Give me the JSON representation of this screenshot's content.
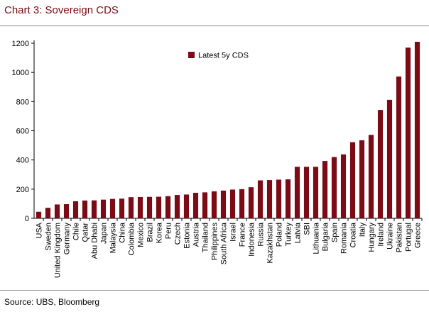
{
  "page": {
    "title": "Chart 3: Sovereign CDS",
    "source": "Source: UBS, Bloomberg"
  },
  "colors": {
    "bar": "#7b0c16",
    "title": "#7a0a14"
  },
  "chart_data": {
    "type": "bar",
    "title": "",
    "xlabel": "",
    "ylabel": "",
    "ylim": [
      0,
      1200
    ],
    "yticks": [
      "0",
      "200",
      "400",
      "600",
      "800",
      "1000",
      "1200"
    ],
    "legend_position": "top-left",
    "grid": false,
    "categories": [
      "USA",
      "Sweden",
      "United Kingdom",
      "Germany",
      "Chile",
      "Qatar",
      "Abu Dhabi",
      "Japan",
      "Malaysia",
      "China",
      "Colombia",
      "Mexico",
      "Brazil",
      "Korea",
      "Peru",
      "Czech",
      "Estonia",
      "Austria",
      "Thailand",
      "Philippines",
      "South Africa",
      "Israel",
      "France",
      "Indonesia",
      "Russia",
      "Kazakhstan",
      "Poland",
      "Turkey",
      "Latvia",
      "SBI",
      "Lithuania",
      "Bulgaria",
      "Spain",
      "Romania",
      "Croatia",
      "Italy",
      "Hungary",
      "Ireland",
      "Ukraine",
      "Pakistan",
      "Portugal",
      "Greece"
    ],
    "series": [
      {
        "name": "Latest 5y  CDS",
        "values": [
          45,
          72,
          95,
          97,
          117,
          122,
          123,
          128,
          133,
          135,
          145,
          146,
          147,
          148,
          152,
          160,
          163,
          175,
          178,
          185,
          190,
          197,
          200,
          213,
          260,
          262,
          265,
          267,
          353,
          353,
          353,
          393,
          420,
          438,
          522,
          535,
          572,
          743,
          812,
          972,
          1170,
          1210
        ]
      }
    ]
  }
}
